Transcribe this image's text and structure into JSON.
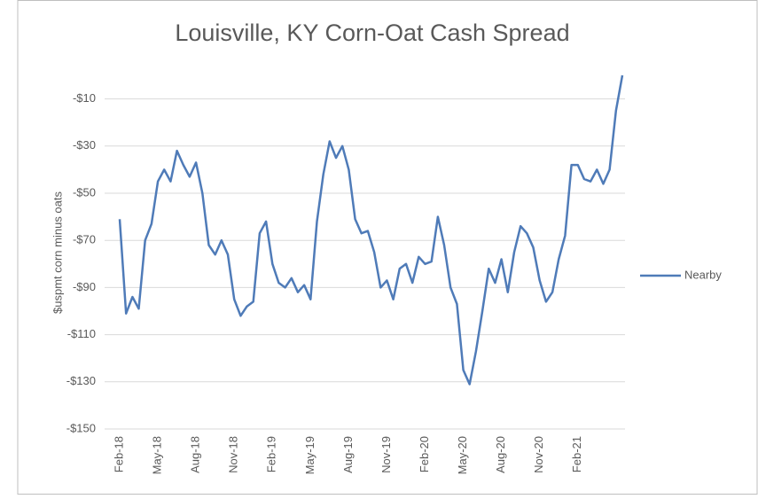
{
  "chart_data": {
    "type": "line",
    "title": "Louisville, KY Corn-Oat Cash Spread",
    "y_label": "$uspmt corn minus oats",
    "categories": [
      "Feb-18",
      null,
      null,
      null,
      null,
      null,
      "May-18",
      null,
      null,
      null,
      null,
      null,
      "Aug-18",
      null,
      null,
      null,
      null,
      null,
      "Nov-18",
      null,
      null,
      null,
      null,
      null,
      "Feb-19",
      null,
      null,
      null,
      null,
      null,
      "May-19",
      null,
      null,
      null,
      null,
      null,
      "Aug-19",
      null,
      null,
      null,
      null,
      null,
      "Nov-19",
      null,
      null,
      null,
      null,
      null,
      "Feb-20",
      null,
      null,
      null,
      null,
      null,
      "May-20",
      null,
      null,
      null,
      null,
      null,
      "Aug-20",
      null,
      null,
      null,
      null,
      null,
      "Nov-20",
      null,
      null,
      null,
      null,
      null,
      "Feb-21",
      null,
      null,
      null,
      null,
      null,
      null,
      null
    ],
    "series": [
      {
        "name": "Nearby",
        "color": "#4f7bb8",
        "values": [
          -61,
          -101,
          -94,
          -99,
          -70,
          -63,
          -45,
          -40,
          -45,
          -32,
          -38,
          -43,
          -37,
          -50,
          -72,
          -76,
          -70,
          -76,
          -95,
          -102,
          -98,
          -96,
          -67,
          -62,
          -80,
          -88,
          -90,
          -86,
          -92,
          -89,
          -95,
          -62,
          -42,
          -28,
          -35,
          -30,
          -40,
          -61,
          -67,
          -66,
          -75,
          -90,
          -87,
          -95,
          -82,
          -80,
          -88,
          -77,
          -80,
          -79,
          -60,
          -72,
          -90,
          -97,
          -125,
          -131,
          -117,
          -100,
          -82,
          -88,
          -78,
          -92,
          -75,
          -64,
          -67,
          -73,
          -87,
          -96,
          -92,
          -78,
          -68,
          -38,
          -38,
          -44,
          -45,
          -40,
          -46,
          -40,
          -15,
          0
        ]
      }
    ],
    "ylim": [
      -150,
      0
    ],
    "yticks": [
      {
        "value": -150,
        "label": "-$150"
      },
      {
        "value": -130,
        "label": "-$130"
      },
      {
        "value": -110,
        "label": "-$110"
      },
      {
        "value": -90,
        "label": "-$90"
      },
      {
        "value": -70,
        "label": "-$70"
      },
      {
        "value": -50,
        "label": "-$50"
      },
      {
        "value": -30,
        "label": "-$30"
      },
      {
        "value": -10,
        "label": "-$10"
      }
    ],
    "grid": true,
    "legend": "right"
  }
}
